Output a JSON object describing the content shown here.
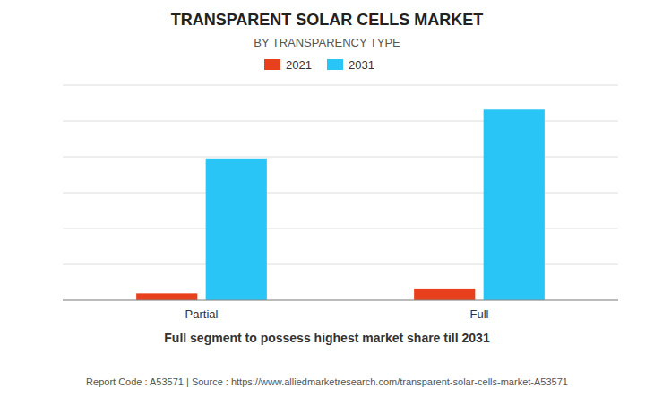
{
  "chart_data": {
    "type": "bar",
    "title": "TRANSPARENT SOLAR CELLS MARKET",
    "subtitle": "BY TRANSPARENCY TYPE",
    "categories": [
      "Partial",
      "Full"
    ],
    "series": [
      {
        "name": "2021",
        "color": "#e8401c",
        "values": [
          0.028,
          0.048
        ]
      },
      {
        "name": "2031",
        "color": "#29c5f6",
        "values": [
          0.58,
          0.78
        ]
      }
    ],
    "ylim": [
      0,
      0.88
    ],
    "yticks": [
      0,
      0.14666666666666667,
      0.29333333333333333,
      0.44,
      0.5866666666666667,
      0.7333333333333333,
      0.88
    ],
    "grid": true,
    "legend": "top",
    "tick_labels": "x",
    "annotations": [
      "Full segment to possess highest market share till 2031",
      "Report Code : A53571  |  Source : https://www.alliedmarketresearch.com/transparent-solar-cells-market-A53571"
    ]
  }
}
